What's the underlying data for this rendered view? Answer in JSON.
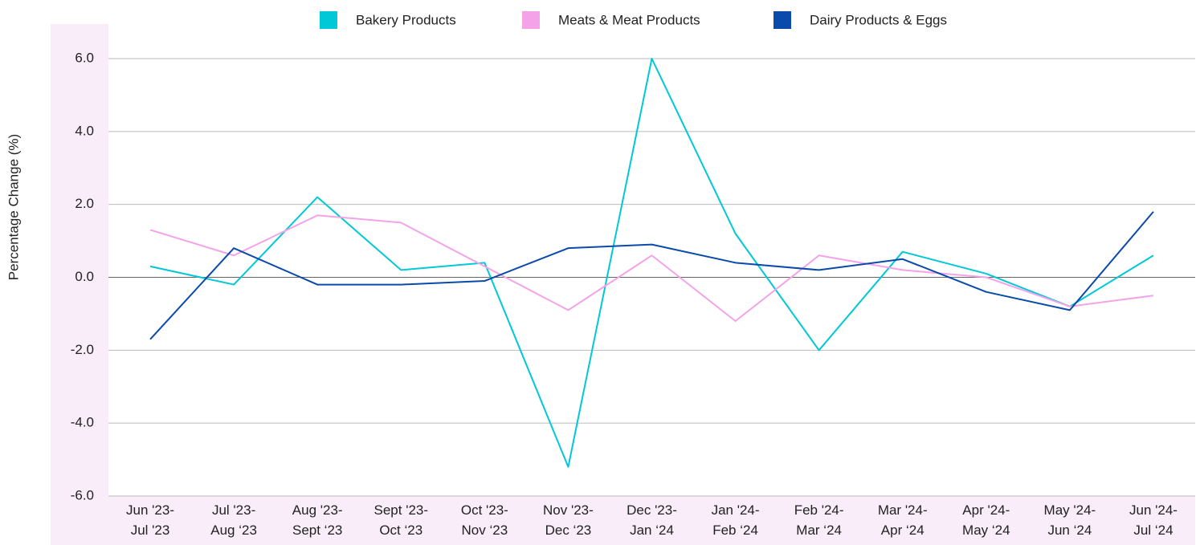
{
  "chart_data": {
    "type": "line",
    "y_label": "Percentage Change (%)",
    "categories": [
      [
        "Jun '23-",
        "Jul '23"
      ],
      [
        "Jul '23-",
        "Aug ‘23"
      ],
      [
        "Aug '23-",
        "Sept ‘23"
      ],
      [
        "Sept '23-",
        "Oct ‘23"
      ],
      [
        "Oct '23-",
        "Nov ‘23"
      ],
      [
        "Nov '23-",
        "Dec ‘23"
      ],
      [
        "Dec '23-",
        "Jan ‘24"
      ],
      [
        "Jan '24-",
        "Feb ‘24"
      ],
      [
        "Feb '24-",
        "Mar ‘24"
      ],
      [
        "Mar '24-",
        "Apr ‘24"
      ],
      [
        "Apr '24-",
        "May ‘24"
      ],
      [
        "May '24-",
        "Jun ‘24"
      ],
      [
        "Jun '24-",
        "Jul ‘24"
      ]
    ],
    "series": [
      {
        "name": "Bakery Products",
        "color": "#00c8d7",
        "values": [
          0.3,
          -0.2,
          2.2,
          0.2,
          0.4,
          -5.2,
          6.0,
          1.2,
          -2.0,
          0.7,
          0.1,
          -0.8,
          0.6
        ]
      },
      {
        "name": "Meats & Meat Products",
        "color": "#f4a3e8",
        "values": [
          1.3,
          0.6,
          1.7,
          1.5,
          0.3,
          -0.9,
          0.6,
          -1.2,
          0.6,
          0.2,
          0.0,
          -0.8,
          -0.5
        ]
      },
      {
        "name": "Dairy Products & Eggs",
        "color": "#0a4aab",
        "values": [
          -1.7,
          0.8,
          -0.2,
          -0.2,
          -0.1,
          0.8,
          0.9,
          0.4,
          0.2,
          0.5,
          -0.4,
          -0.9,
          1.8
        ]
      }
    ],
    "ylim": [
      -6,
      6
    ],
    "yticks": [
      {
        "value": -6,
        "label": "-6.0"
      },
      {
        "value": -4,
        "label": "-4.0"
      },
      {
        "value": -2,
        "label": "-2.0"
      },
      {
        "value": 0,
        "label": "0.0"
      },
      {
        "value": 2,
        "label": "2.0"
      },
      {
        "value": 4,
        "label": "4.0"
      },
      {
        "value": 6,
        "label": "6.0"
      }
    ],
    "grid": true,
    "legend": "top"
  }
}
